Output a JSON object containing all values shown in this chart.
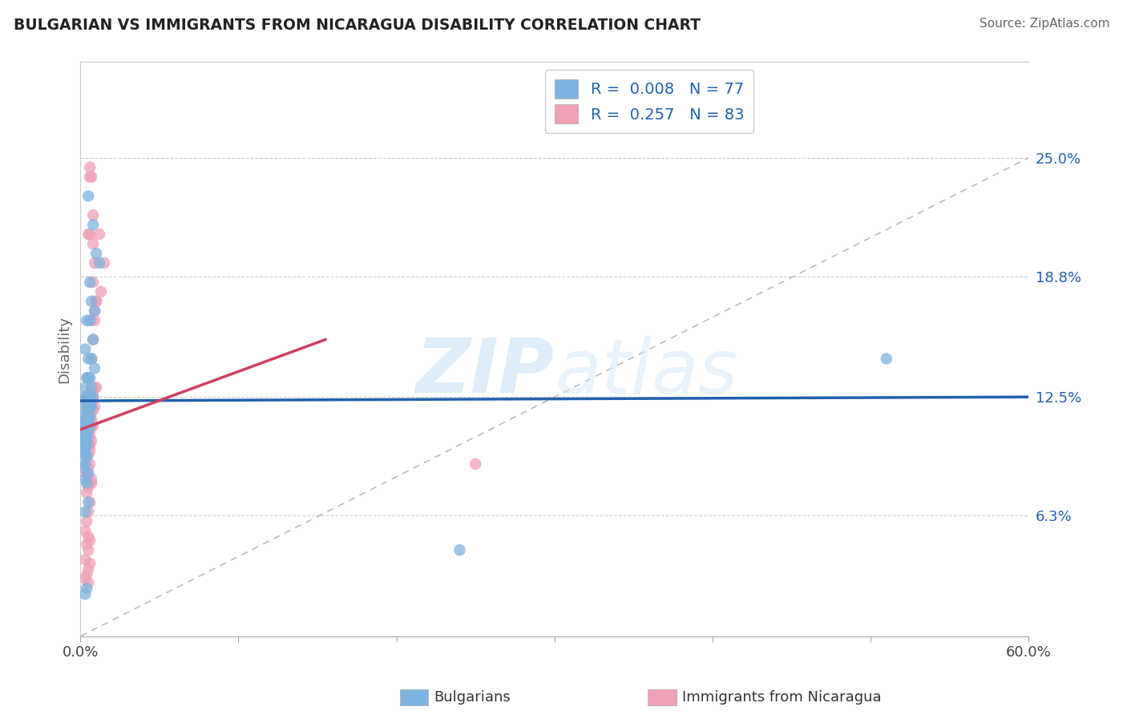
{
  "title": "BULGARIAN VS IMMIGRANTS FROM NICARAGUA DISABILITY CORRELATION CHART",
  "source": "Source: ZipAtlas.com",
  "xlabel_bulgarians": "Bulgarians",
  "xlabel_nicaragua": "Immigrants from Nicaragua",
  "ylabel": "Disability",
  "r_blue": 0.008,
  "n_blue": 77,
  "r_pink": 0.257,
  "n_pink": 83,
  "color_blue": "#7eb3e0",
  "color_pink": "#f0a0b5",
  "color_line_blue": "#2060b0",
  "color_line_pink": "#d04060",
  "color_ref_line": "#bbbbbb",
  "xlim": [
    0.0,
    0.6
  ],
  "ylim": [
    0.0,
    0.3
  ],
  "yticks": [
    0.063,
    0.125,
    0.188,
    0.25
  ],
  "ytick_labels": [
    "6.3%",
    "12.5%",
    "18.8%",
    "25.0%"
  ],
  "watermark": "ZIPatlas",
  "blue_x": [
    0.005,
    0.008,
    0.01,
    0.012,
    0.006,
    0.007,
    0.009,
    0.004,
    0.006,
    0.008,
    0.003,
    0.005,
    0.007,
    0.009,
    0.004,
    0.006,
    0.005,
    0.007,
    0.003,
    0.008,
    0.002,
    0.004,
    0.006,
    0.005,
    0.003,
    0.004,
    0.006,
    0.005,
    0.007,
    0.003,
    0.004,
    0.005,
    0.006,
    0.002,
    0.003,
    0.004,
    0.005,
    0.003,
    0.004,
    0.002,
    0.006,
    0.004,
    0.005,
    0.003,
    0.002,
    0.004,
    0.005,
    0.003,
    0.004,
    0.002,
    0.003,
    0.004,
    0.002,
    0.003,
    0.004,
    0.003,
    0.002,
    0.003,
    0.004,
    0.002,
    0.003,
    0.004,
    0.003,
    0.002,
    0.003,
    0.004,
    0.003,
    0.002,
    0.005,
    0.51,
    0.24,
    0.003,
    0.004,
    0.005,
    0.003,
    0.004,
    0.003
  ],
  "blue_y": [
    0.23,
    0.215,
    0.2,
    0.195,
    0.185,
    0.175,
    0.17,
    0.165,
    0.165,
    0.155,
    0.15,
    0.145,
    0.145,
    0.14,
    0.135,
    0.135,
    0.135,
    0.13,
    0.13,
    0.125,
    0.125,
    0.125,
    0.125,
    0.125,
    0.123,
    0.123,
    0.12,
    0.12,
    0.12,
    0.12,
    0.118,
    0.118,
    0.115,
    0.115,
    0.113,
    0.113,
    0.113,
    0.112,
    0.112,
    0.112,
    0.11,
    0.11,
    0.11,
    0.11,
    0.108,
    0.108,
    0.108,
    0.107,
    0.107,
    0.107,
    0.106,
    0.106,
    0.105,
    0.105,
    0.104,
    0.104,
    0.102,
    0.102,
    0.102,
    0.1,
    0.1,
    0.1,
    0.098,
    0.097,
    0.095,
    0.094,
    0.09,
    0.088,
    0.085,
    0.145,
    0.045,
    0.082,
    0.08,
    0.07,
    0.065,
    0.025,
    0.022
  ],
  "pink_x": [
    0.006,
    0.008,
    0.005,
    0.009,
    0.007,
    0.008,
    0.012,
    0.01,
    0.009,
    0.007,
    0.006,
    0.008,
    0.015,
    0.013,
    0.01,
    0.009,
    0.008,
    0.007,
    0.006,
    0.005,
    0.01,
    0.009,
    0.008,
    0.007,
    0.006,
    0.005,
    0.004,
    0.008,
    0.007,
    0.006,
    0.005,
    0.009,
    0.008,
    0.007,
    0.006,
    0.005,
    0.007,
    0.006,
    0.005,
    0.004,
    0.008,
    0.007,
    0.006,
    0.005,
    0.004,
    0.006,
    0.005,
    0.004,
    0.003,
    0.006,
    0.005,
    0.004,
    0.007,
    0.006,
    0.005,
    0.004,
    0.006,
    0.005,
    0.004,
    0.006,
    0.005,
    0.004,
    0.007,
    0.006,
    0.005,
    0.004,
    0.006,
    0.005,
    0.004,
    0.007,
    0.006,
    0.005,
    0.004,
    0.003,
    0.005,
    0.004,
    0.003,
    0.006,
    0.005,
    0.004,
    0.003,
    0.005,
    0.25
  ],
  "pink_y": [
    0.245,
    0.22,
    0.21,
    0.195,
    0.24,
    0.185,
    0.21,
    0.175,
    0.17,
    0.165,
    0.21,
    0.205,
    0.195,
    0.18,
    0.175,
    0.165,
    0.155,
    0.145,
    0.24,
    0.135,
    0.13,
    0.13,
    0.128,
    0.128,
    0.125,
    0.125,
    0.125,
    0.125,
    0.122,
    0.122,
    0.12,
    0.12,
    0.118,
    0.118,
    0.116,
    0.116,
    0.113,
    0.113,
    0.113,
    0.112,
    0.11,
    0.11,
    0.11,
    0.108,
    0.108,
    0.107,
    0.107,
    0.106,
    0.106,
    0.104,
    0.104,
    0.102,
    0.102,
    0.1,
    0.1,
    0.098,
    0.097,
    0.095,
    0.093,
    0.09,
    0.088,
    0.085,
    0.082,
    0.08,
    0.078,
    0.075,
    0.07,
    0.065,
    0.06,
    0.08,
    0.05,
    0.045,
    0.085,
    0.055,
    0.052,
    0.048,
    0.04,
    0.038,
    0.035,
    0.032,
    0.03,
    0.028,
    0.09
  ],
  "blue_line_x": [
    0.0,
    0.6
  ],
  "blue_line_y": [
    0.123,
    0.125
  ],
  "pink_line_x": [
    0.0,
    0.155
  ],
  "pink_line_y": [
    0.108,
    0.155
  ]
}
